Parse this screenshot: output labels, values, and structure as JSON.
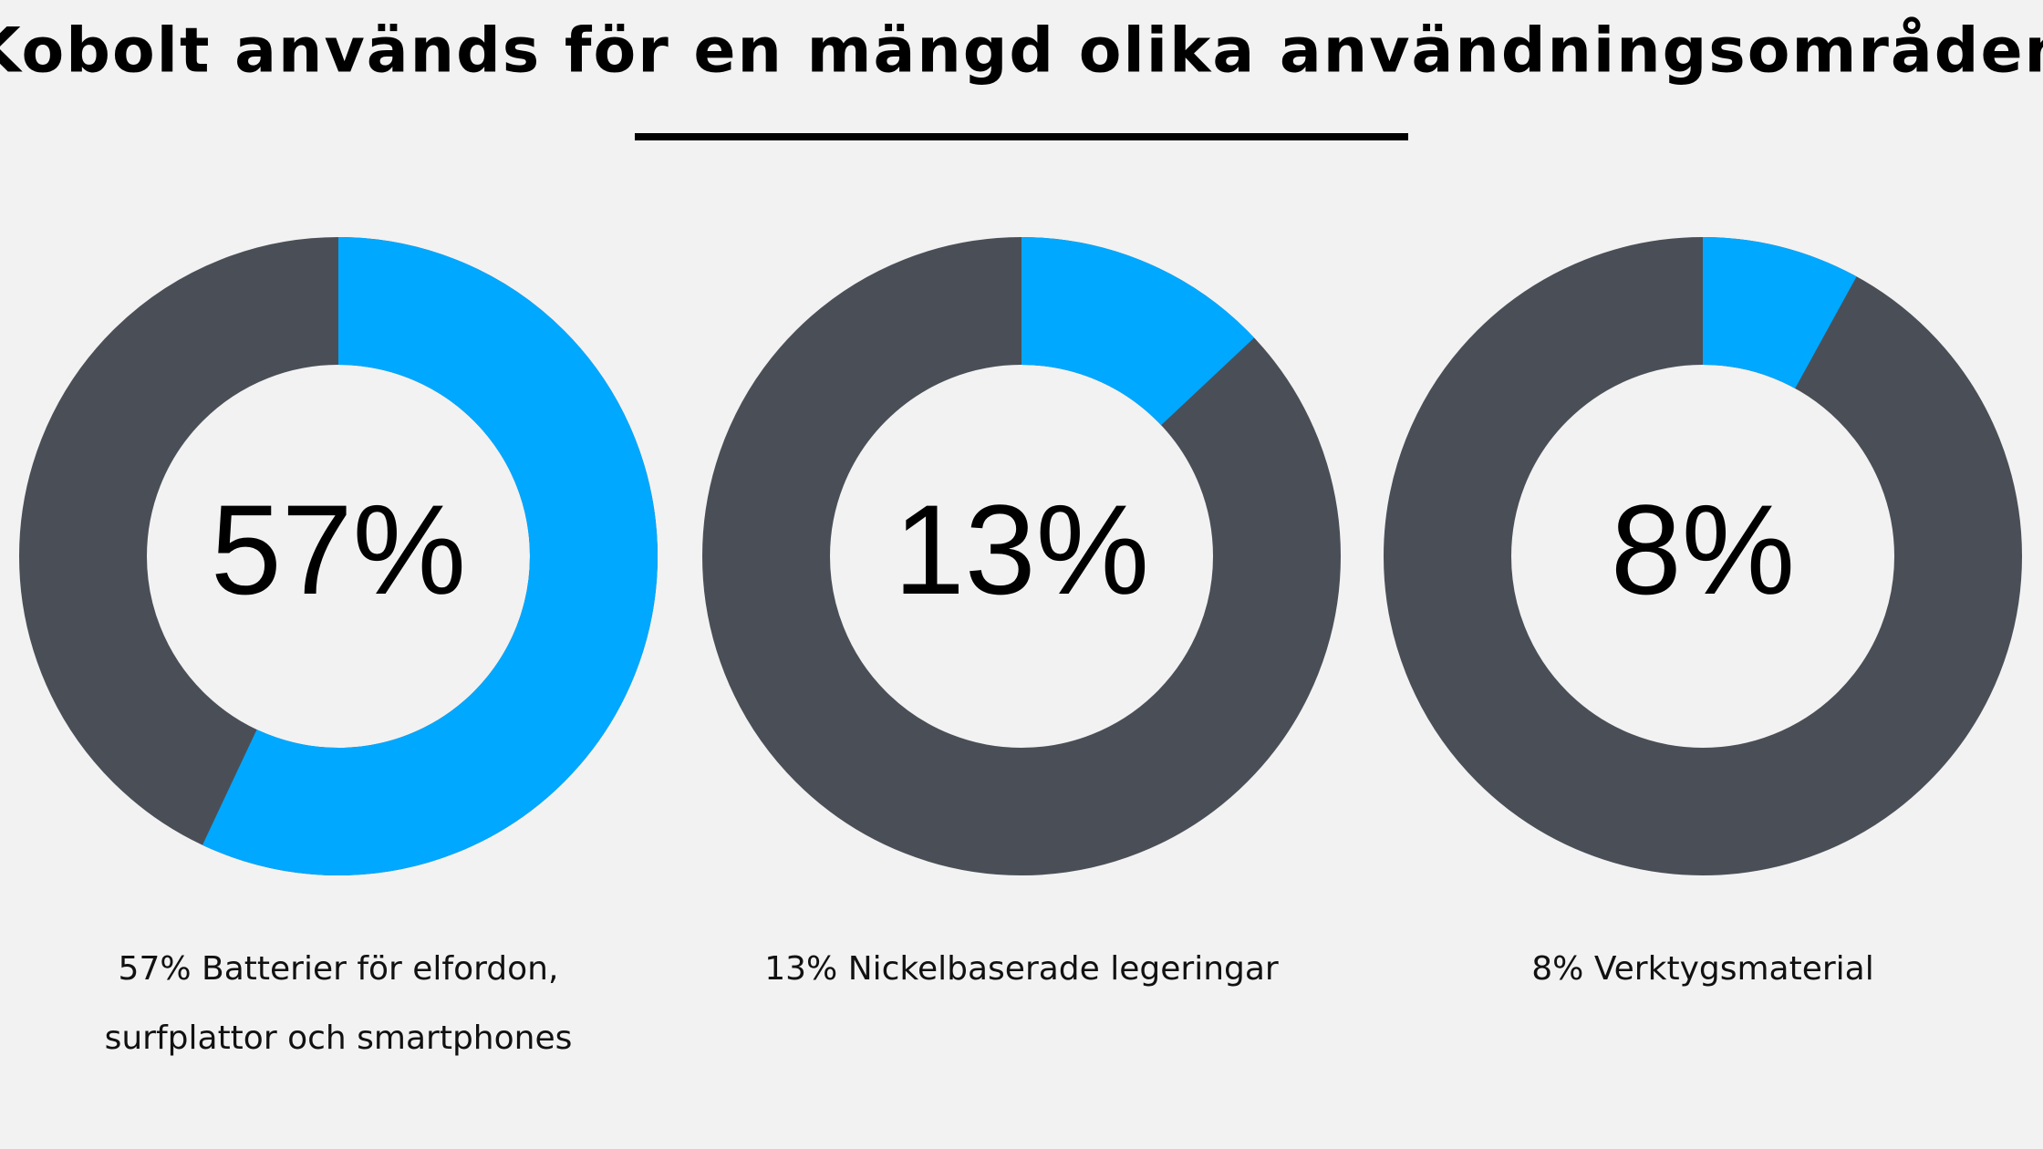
{
  "title": "Kobolt används för en mängd olika användningsområden",
  "chart_data": [
    {
      "type": "donut",
      "values": [
        57
      ],
      "value_labels": [
        "57%"
      ],
      "color": "#00a8ff",
      "track_color": "#4a4f57",
      "caption": [
        "57% Batterier för elfordon,",
        "surfplattor och smartphones"
      ]
    },
    {
      "type": "donut",
      "values": [
        13
      ],
      "value_labels": [
        "13%"
      ],
      "color": "#00a8ff",
      "track_color": "#4a4f57",
      "caption": [
        "13% Nickelbaserade legeringar"
      ]
    },
    {
      "type": "donut",
      "values": [
        8
      ],
      "value_labels": [
        "8%"
      ],
      "color": "#00a8ff",
      "track_color": "#4a4f57",
      "caption": [
        "8% Verktygsmaterial"
      ]
    }
  ]
}
